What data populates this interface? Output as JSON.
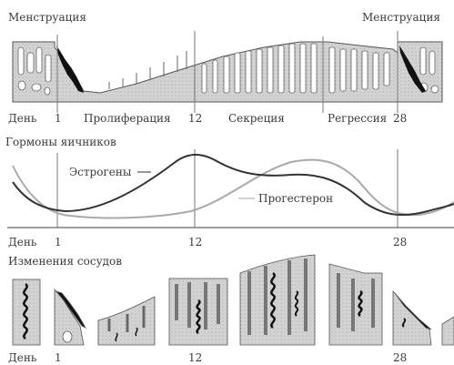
{
  "labels": {
    "menstruation_left": "Менструация",
    "menstruation_right": "Менструация",
    "day_row1": "День",
    "day_row2": "День",
    "day_row3": "День",
    "proliferation": "Пролиферация",
    "secretion": "Секреция",
    "regression": "Регрессия",
    "ovarian_hormones": "Гормоны яичников",
    "estrogens": "Эстрогены",
    "progesterone": "Прогестерон",
    "vessel_changes": "Изменения сосудов"
  },
  "day_ticks": {
    "row1": [
      "1",
      "12",
      "28"
    ],
    "row2": [
      "1",
      "12",
      "28"
    ],
    "row3": [
      "1",
      "12",
      "28"
    ]
  },
  "colors": {
    "tissue_fill": "#d8d8d8",
    "tissue_stroke": "#555555",
    "vessel": "#111111",
    "estrogen_curve": "#333333",
    "progesterone_curve": "#aaaaaa",
    "marker_line": "#777777"
  }
}
